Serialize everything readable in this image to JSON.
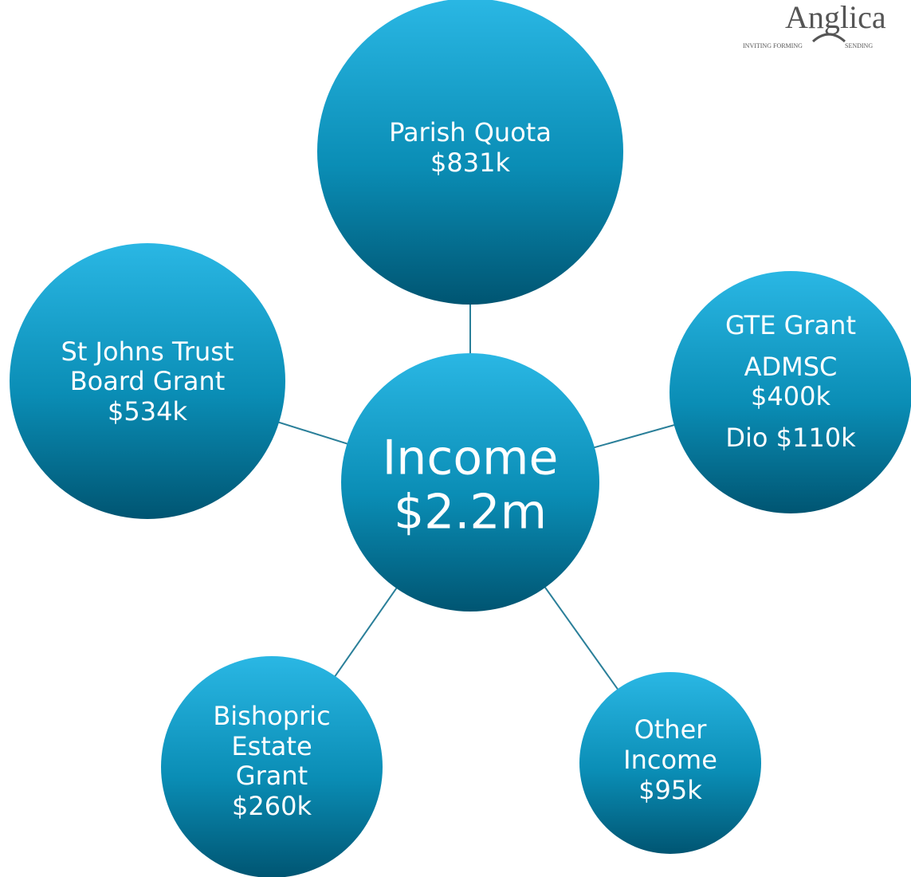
{
  "logo": {
    "name": "Anglica",
    "tagline_left": "INVITING FORMING",
    "tagline_right": "SENDING"
  },
  "center": {
    "lines": [
      "Income",
      "$2.2m"
    ]
  },
  "nodes": [
    {
      "lines": [
        "Parish Quota",
        "$831k"
      ]
    },
    {
      "lines": [
        "St Johns Trust",
        "Board Grant",
        "$534k"
      ]
    },
    {
      "lines": [
        "GTE Grant",
        "ADMSC",
        "$400k",
        "Dio $110k"
      ]
    },
    {
      "lines": [
        "Bishopric",
        "Estate",
        "Grant",
        "$260k"
      ]
    },
    {
      "lines": [
        "Other",
        "Income",
        "$95k"
      ]
    }
  ]
}
